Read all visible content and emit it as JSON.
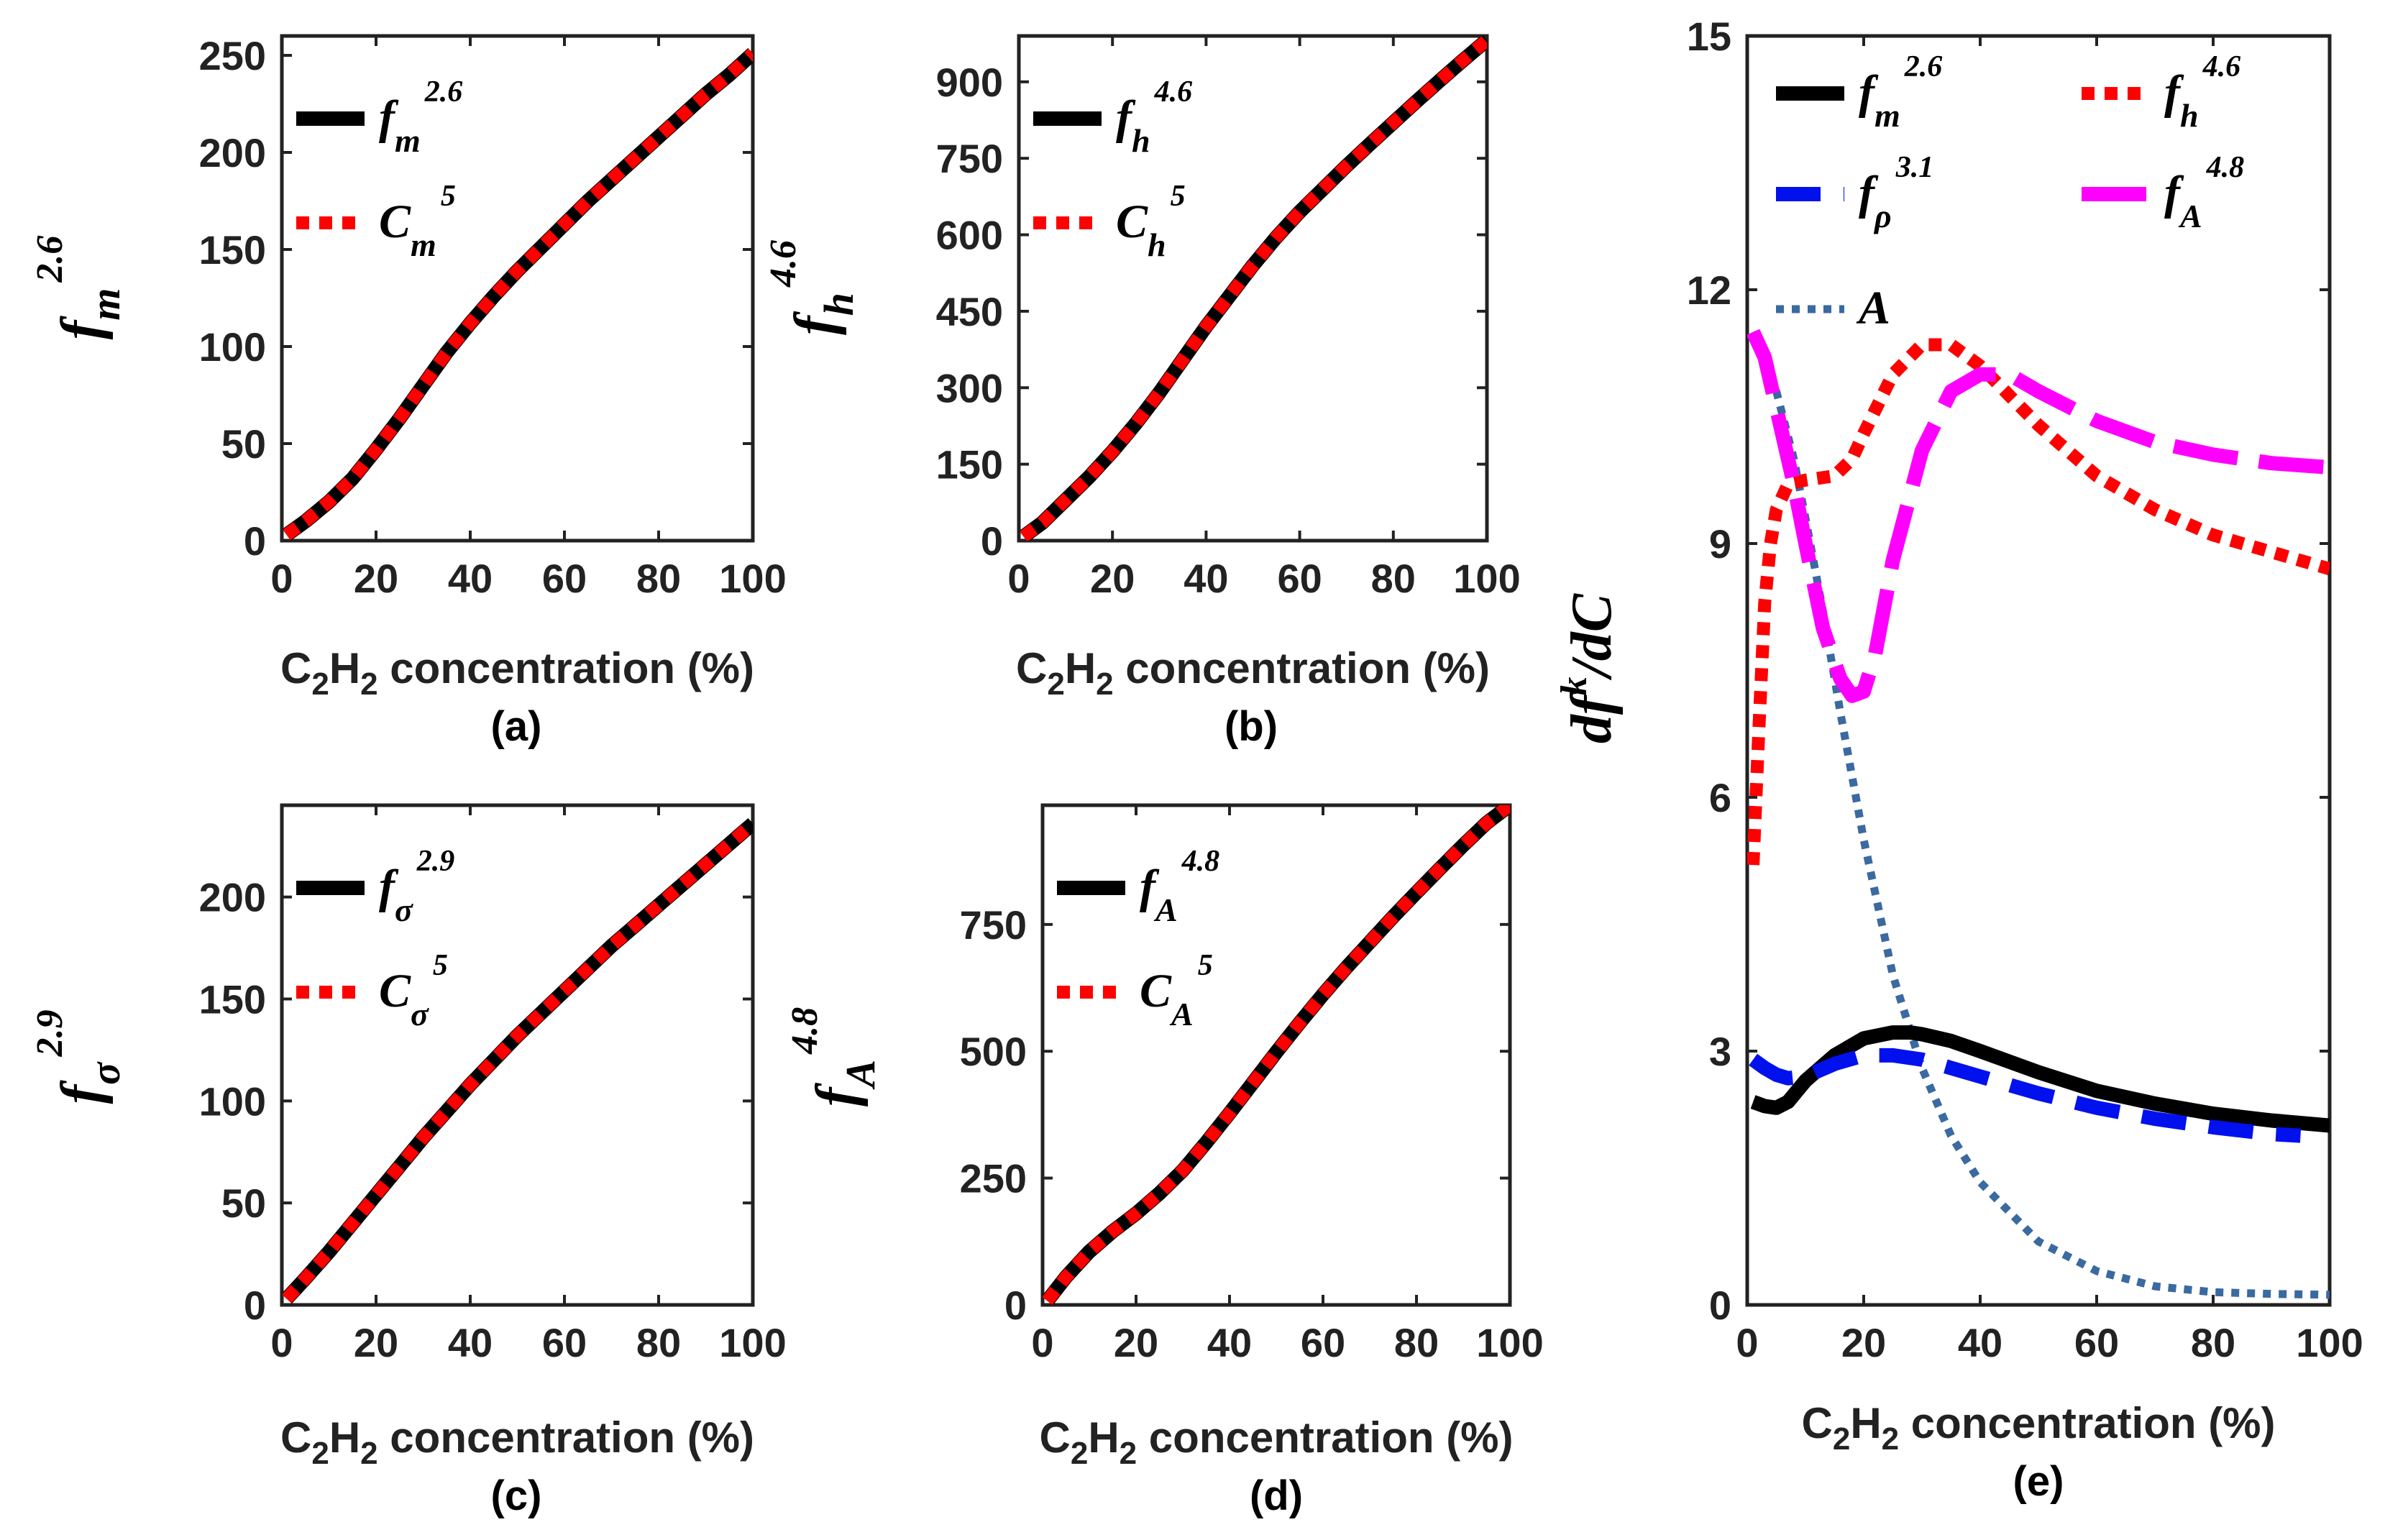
{
  "colors": {
    "black": "#000000",
    "red": "#ff0000",
    "blue": "#0011ee",
    "magenta": "#ff00ff",
    "steel": "#3a6aa0"
  },
  "chart_data": [
    {
      "id": "a",
      "type": "line",
      "caption": "(a)",
      "xlabel": {
        "base": "C",
        "sub1": "2",
        "mid": "H",
        "sub2": "2",
        "rest": " concentration (%)"
      },
      "ylabel": {
        "base": "f",
        "sub": "m",
        "sup": "2.6"
      },
      "xlim": [
        0,
        100
      ],
      "ylim": [
        0,
        260
      ],
      "xticks": [
        "0",
        "20",
        "40",
        "60",
        "80",
        "100"
      ],
      "yticks": [
        "0",
        "50",
        "100",
        "150",
        "200",
        "250"
      ],
      "legend_position": "top-left",
      "series": [
        {
          "legend": {
            "base": "f",
            "sub": "m",
            "sup": "2.6"
          },
          "color": "#000000",
          "style": "solid",
          "x": [
            1,
            5,
            10,
            15,
            20,
            25,
            30,
            35,
            40,
            45,
            50,
            55,
            60,
            65,
            70,
            75,
            80,
            85,
            90,
            95,
            100
          ],
          "y": [
            3,
            10,
            20,
            32,
            47,
            63,
            80,
            97,
            112,
            126,
            139,
            151,
            163,
            175,
            186,
            197,
            208,
            219,
            230,
            240,
            251
          ]
        },
        {
          "legend": {
            "base": "C",
            "sub": "m",
            "sup": "5"
          },
          "color": "#ff0000",
          "style": "dot",
          "x": [
            1,
            5,
            10,
            15,
            20,
            25,
            30,
            35,
            40,
            45,
            50,
            55,
            60,
            65,
            70,
            75,
            80,
            85,
            90,
            95,
            100
          ],
          "y": [
            3,
            10,
            20,
            32,
            47,
            63,
            80,
            97,
            112,
            126,
            139,
            151,
            163,
            175,
            186,
            197,
            208,
            219,
            230,
            240,
            251
          ]
        }
      ]
    },
    {
      "id": "b",
      "type": "line",
      "caption": "(b)",
      "xlabel": {
        "base": "C",
        "sub1": "2",
        "mid": "H",
        "sub2": "2",
        "rest": " concentration (%)"
      },
      "ylabel": {
        "base": "f",
        "sub": "h",
        "sup": "4.6"
      },
      "xlim": [
        0,
        100
      ],
      "ylim": [
        0,
        990
      ],
      "xticks": [
        "0",
        "20",
        "40",
        "60",
        "80",
        "100"
      ],
      "yticks": [
        "0",
        "150",
        "300",
        "450",
        "600",
        "750",
        "900"
      ],
      "legend_position": "top-left",
      "series": [
        {
          "legend": {
            "base": "f",
            "sub": "h",
            "sup": "4.6"
          },
          "color": "#000000",
          "style": "solid",
          "x": [
            1,
            5,
            10,
            15,
            20,
            25,
            30,
            35,
            40,
            45,
            50,
            55,
            60,
            65,
            70,
            75,
            80,
            85,
            90,
            95,
            100
          ],
          "y": [
            8,
            35,
            80,
            125,
            175,
            230,
            290,
            355,
            420,
            480,
            540,
            595,
            645,
            690,
            735,
            778,
            820,
            862,
            903,
            943,
            982
          ]
        },
        {
          "legend": {
            "base": "C",
            "sub": "h",
            "sup": "5"
          },
          "color": "#ff0000",
          "style": "dot",
          "x": [
            1,
            5,
            10,
            15,
            20,
            25,
            30,
            35,
            40,
            45,
            50,
            55,
            60,
            65,
            70,
            75,
            80,
            85,
            90,
            95,
            100
          ],
          "y": [
            8,
            35,
            80,
            125,
            175,
            230,
            290,
            355,
            420,
            480,
            540,
            595,
            645,
            690,
            735,
            778,
            820,
            862,
            903,
            943,
            982
          ]
        }
      ]
    },
    {
      "id": "c",
      "type": "line",
      "caption": "(c)",
      "xlabel": {
        "base": "C",
        "sub1": "2",
        "mid": "H",
        "sub2": "2",
        "rest": " concentration (%)"
      },
      "ylabel": {
        "base": "f",
        "sub": "σ",
        "sup": "2.9"
      },
      "xlim": [
        0,
        100
      ],
      "ylim": [
        0,
        245
      ],
      "xticks": [
        "0",
        "20",
        "40",
        "60",
        "80",
        "100"
      ],
      "yticks": [
        "0",
        "50",
        "100",
        "150",
        "200"
      ],
      "legend_position": "top-left",
      "series": [
        {
          "legend": {
            "base": "f",
            "sub": "σ",
            "sup": "2.9"
          },
          "color": "#000000",
          "style": "solid",
          "x": [
            1,
            5,
            10,
            15,
            20,
            25,
            30,
            35,
            40,
            45,
            50,
            55,
            60,
            65,
            70,
            75,
            80,
            85,
            90,
            95,
            100
          ],
          "y": [
            3,
            13,
            26,
            40,
            54,
            68,
            82,
            95,
            108,
            120,
            132,
            143,
            154,
            165,
            176,
            186,
            196,
            206,
            216,
            226,
            236
          ]
        },
        {
          "legend": {
            "base": "C",
            "sub": "σ",
            "sup": "5"
          },
          "color": "#ff0000",
          "style": "dot",
          "x": [
            1,
            5,
            10,
            15,
            20,
            25,
            30,
            35,
            40,
            45,
            50,
            55,
            60,
            65,
            70,
            75,
            80,
            85,
            90,
            95,
            100
          ],
          "y": [
            3,
            13,
            26,
            40,
            54,
            68,
            82,
            95,
            108,
            120,
            132,
            143,
            154,
            165,
            176,
            186,
            196,
            206,
            216,
            226,
            236
          ]
        }
      ]
    },
    {
      "id": "d",
      "type": "line",
      "caption": "(d)",
      "xlabel": {
        "base": "C",
        "sub1": "2",
        "mid": "H",
        "sub2": "2",
        "rest": " concentration (%)"
      },
      "ylabel": {
        "base": "f",
        "sub": "A",
        "sup": "4.8"
      },
      "xlim": [
        0,
        100
      ],
      "ylim": [
        0,
        985
      ],
      "xticks": [
        "0",
        "20",
        "40",
        "60",
        "80",
        "100"
      ],
      "yticks": [
        "0",
        "250",
        "500",
        "750"
      ],
      "legend_position": "top-left",
      "series": [
        {
          "legend": {
            "base": "f",
            "sub": "A",
            "sup": "4.8"
          },
          "color": "#000000",
          "style": "solid",
          "x": [
            1,
            5,
            10,
            15,
            20,
            25,
            30,
            35,
            40,
            45,
            50,
            55,
            60,
            65,
            70,
            75,
            80,
            85,
            90,
            95,
            100
          ],
          "y": [
            8,
            55,
            105,
            145,
            180,
            220,
            265,
            320,
            378,
            438,
            498,
            556,
            612,
            665,
            715,
            765,
            813,
            860,
            906,
            950,
            985
          ]
        },
        {
          "legend": {
            "base": "C",
            "sub": "A",
            "sup": "5"
          },
          "color": "#ff0000",
          "style": "dot",
          "x": [
            1,
            5,
            10,
            15,
            20,
            25,
            30,
            35,
            40,
            45,
            50,
            55,
            60,
            65,
            70,
            75,
            80,
            85,
            90,
            95,
            100
          ],
          "y": [
            8,
            55,
            105,
            145,
            180,
            220,
            265,
            320,
            378,
            438,
            498,
            556,
            612,
            665,
            715,
            765,
            813,
            860,
            906,
            950,
            985
          ]
        }
      ]
    },
    {
      "id": "e",
      "type": "line",
      "caption": "(e)",
      "xlabel": {
        "base": "C",
        "sub1": "2",
        "mid": "H",
        "sub2": "2",
        "rest": " concentration (%)"
      },
      "ylabel": {
        "pre": "d",
        "base": "f",
        "sup": "k",
        "mid": "/d",
        "end": "C"
      },
      "xlim": [
        0,
        100
      ],
      "ylim": [
        0,
        15
      ],
      "xticks": [
        "0",
        "20",
        "40",
        "60",
        "80",
        "100"
      ],
      "yticks": [
        "0",
        "3",
        "6",
        "9",
        "12",
        "15"
      ],
      "legend_position": "top",
      "series": [
        {
          "legend": {
            "base": "f",
            "sub": "m",
            "sup": "2.6"
          },
          "color": "#000000",
          "style": "solid",
          "x": [
            1,
            3,
            5,
            7,
            10,
            15,
            20,
            25,
            28,
            30,
            35,
            40,
            50,
            60,
            70,
            80,
            90,
            100
          ],
          "y": [
            2.4,
            2.35,
            2.33,
            2.4,
            2.65,
            2.95,
            3.15,
            3.22,
            3.22,
            3.2,
            3.12,
            3.0,
            2.75,
            2.53,
            2.38,
            2.26,
            2.18,
            2.12
          ]
        },
        {
          "legend": {
            "base": "f",
            "sub": "ρ",
            "sup": "3.1"
          },
          "color": "#0011ee",
          "style": "dash",
          "x": [
            1,
            3,
            5,
            7,
            10,
            15,
            20,
            25,
            30,
            35,
            40,
            50,
            60,
            70,
            80,
            90,
            95
          ],
          "y": [
            2.9,
            2.8,
            2.72,
            2.68,
            2.7,
            2.85,
            2.95,
            2.95,
            2.9,
            2.8,
            2.7,
            2.5,
            2.33,
            2.2,
            2.1,
            2.02,
            2.0
          ]
        },
        {
          "legend": {
            "base": "f",
            "sub": "h",
            "sup": "4.6"
          },
          "color": "#ff0000",
          "style": "dot",
          "x": [
            1,
            2,
            3,
            4,
            5,
            7,
            10,
            15,
            18,
            20,
            25,
            30,
            35,
            40,
            50,
            60,
            70,
            80,
            90,
            100
          ],
          "y": [
            5.2,
            6.8,
            8.3,
            9.0,
            9.4,
            9.7,
            9.75,
            9.8,
            10.0,
            10.3,
            11.0,
            11.35,
            11.35,
            11.1,
            10.4,
            9.8,
            9.4,
            9.1,
            8.9,
            8.7
          ]
        },
        {
          "legend": {
            "base": "f",
            "sub": "A",
            "sup": "4.8"
          },
          "color": "#ff00ff",
          "style": "longdash",
          "x": [
            1,
            3,
            5,
            8,
            10,
            13,
            16,
            18,
            20,
            22,
            25,
            30,
            35,
            40,
            45,
            50,
            60,
            70,
            80,
            90,
            100
          ],
          "y": [
            11.5,
            11.2,
            10.6,
            9.7,
            9.0,
            8.0,
            7.4,
            7.2,
            7.25,
            7.7,
            8.8,
            10.1,
            10.8,
            11.0,
            11.0,
            10.8,
            10.45,
            10.2,
            10.05,
            9.95,
            9.9
          ]
        },
        {
          "legend": {
            "base": "A"
          },
          "color": "#3a6aa0",
          "style": "fine-dot",
          "x": [
            1,
            3,
            5,
            8,
            10,
            13,
            16,
            20,
            25,
            30,
            35,
            40,
            50,
            60,
            70,
            80,
            90,
            100
          ],
          "y": [
            11.5,
            11.2,
            10.8,
            10.0,
            9.3,
            8.2,
            7.0,
            5.5,
            3.9,
            2.8,
            2.0,
            1.45,
            0.75,
            0.4,
            0.22,
            0.15,
            0.13,
            0.12
          ]
        }
      ]
    }
  ]
}
